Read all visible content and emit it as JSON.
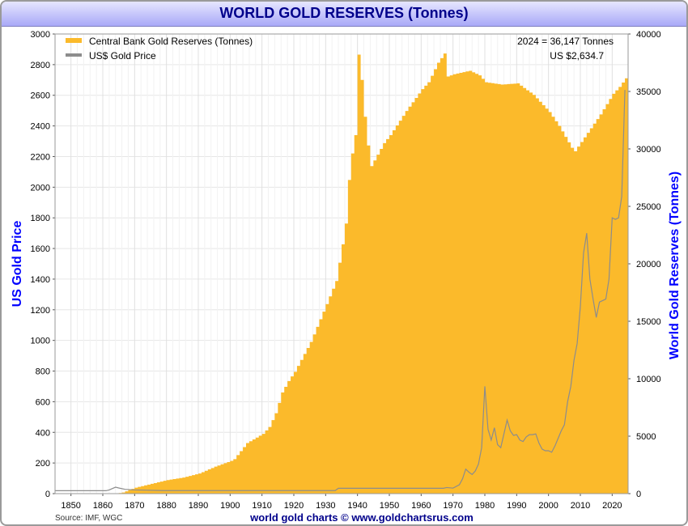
{
  "page": {
    "title": "WORLD GOLD RESERVES (Tonnes)",
    "source": "Source: IMF, WGC",
    "footer": "world gold charts © www.goldchartsrus.com"
  },
  "colors": {
    "reserves": "#fbba2b",
    "price": "#8c8c8c",
    "axis_title": "#0000ff",
    "title": "#00008b",
    "grid": "#e6e6e6"
  },
  "chart_data": {
    "type": "area",
    "title": "WORLD GOLD RESERVES (Tonnes)",
    "xlim": [
      1845,
      2025
    ],
    "x_ticks": [
      1850,
      1860,
      1870,
      1880,
      1890,
      1900,
      1910,
      1920,
      1930,
      1940,
      1950,
      1960,
      1970,
      1980,
      1990,
      2000,
      2010,
      2020
    ],
    "left_axis": {
      "label": "US Gold Price",
      "ylim": [
        0,
        3000
      ],
      "ticks": [
        0,
        200,
        400,
        600,
        800,
        1000,
        1200,
        1400,
        1600,
        1800,
        2000,
        2200,
        2400,
        2600,
        2800,
        3000
      ]
    },
    "right_axis": {
      "label": "World Gold Reserves (Tonnes)",
      "ylim": [
        0,
        40000
      ],
      "ticks": [
        0,
        5000,
        10000,
        15000,
        20000,
        25000,
        30000,
        35000,
        40000
      ]
    },
    "legend_position": "top-left",
    "annotations": [
      "2024 = 36,147 Tonnes",
      "US $2,634.7"
    ],
    "series": [
      {
        "name": "Central Bank Gold Reserves (Tonnes)",
        "axis": "right",
        "render": "area",
        "points": [
          [
            1845,
            0
          ],
          [
            1864,
            0
          ],
          [
            1866,
            100
          ],
          [
            1870,
            520
          ],
          [
            1875,
            850
          ],
          [
            1880,
            1180
          ],
          [
            1885,
            1400
          ],
          [
            1890,
            1750
          ],
          [
            1895,
            2350
          ],
          [
            1900,
            2850
          ],
          [
            1901,
            3000
          ],
          [
            1905,
            4400
          ],
          [
            1910,
            5200
          ],
          [
            1912,
            5800
          ],
          [
            1914,
            7000
          ],
          [
            1916,
            8800
          ],
          [
            1918,
            9800
          ],
          [
            1920,
            10600
          ],
          [
            1925,
            13200
          ],
          [
            1930,
            16500
          ],
          [
            1933,
            18500
          ],
          [
            1935,
            21700
          ],
          [
            1936,
            23500
          ],
          [
            1937,
            27300
          ],
          [
            1938,
            29600
          ],
          [
            1939,
            31200
          ],
          [
            1940,
            38200
          ],
          [
            1941,
            36000
          ],
          [
            1942,
            32800
          ],
          [
            1943,
            30300
          ],
          [
            1944,
            28500
          ],
          [
            1946,
            29500
          ],
          [
            1948,
            30500
          ],
          [
            1950,
            31200
          ],
          [
            1955,
            33300
          ],
          [
            1960,
            35200
          ],
          [
            1962,
            35800
          ],
          [
            1965,
            37500
          ],
          [
            1967,
            38300
          ],
          [
            1968,
            36300
          ],
          [
            1970,
            36500
          ],
          [
            1975,
            36800
          ],
          [
            1978,
            36400
          ],
          [
            1980,
            35800
          ],
          [
            1985,
            35600
          ],
          [
            1990,
            35700
          ],
          [
            1995,
            34700
          ],
          [
            2000,
            33200
          ],
          [
            2003,
            32000
          ],
          [
            2007,
            30100
          ],
          [
            2008,
            29800
          ],
          [
            2010,
            30600
          ],
          [
            2013,
            31800
          ],
          [
            2016,
            33000
          ],
          [
            2020,
            34800
          ],
          [
            2022,
            35400
          ],
          [
            2024,
            36147
          ]
        ]
      },
      {
        "name": "US$ Gold Price",
        "axis": "left",
        "render": "line",
        "points": [
          [
            1845,
            19
          ],
          [
            1861,
            19
          ],
          [
            1862,
            24
          ],
          [
            1864,
            42
          ],
          [
            1865,
            37
          ],
          [
            1867,
            28
          ],
          [
            1870,
            24
          ],
          [
            1879,
            20
          ],
          [
            1933,
            20
          ],
          [
            1934,
            35
          ],
          [
            1967,
            35
          ],
          [
            1968,
            40
          ],
          [
            1970,
            36
          ],
          [
            1972,
            58
          ],
          [
            1973,
            97
          ],
          [
            1974,
            160
          ],
          [
            1975,
            140
          ],
          [
            1976,
            125
          ],
          [
            1977,
            148
          ],
          [
            1978,
            193
          ],
          [
            1979,
            300
          ],
          [
            1980,
            700
          ],
          [
            1981,
            420
          ],
          [
            1982,
            350
          ],
          [
            1983,
            430
          ],
          [
            1984,
            320
          ],
          [
            1985,
            300
          ],
          [
            1986,
            390
          ],
          [
            1987,
            480
          ],
          [
            1988,
            410
          ],
          [
            1989,
            380
          ],
          [
            1990,
            385
          ],
          [
            1991,
            350
          ],
          [
            1992,
            340
          ],
          [
            1993,
            370
          ],
          [
            1994,
            385
          ],
          [
            1995,
            385
          ],
          [
            1996,
            390
          ],
          [
            1997,
            330
          ],
          [
            1998,
            290
          ],
          [
            1999,
            280
          ],
          [
            2000,
            280
          ],
          [
            2001,
            270
          ],
          [
            2002,
            310
          ],
          [
            2003,
            360
          ],
          [
            2004,
            410
          ],
          [
            2005,
            450
          ],
          [
            2006,
            600
          ],
          [
            2007,
            700
          ],
          [
            2008,
            870
          ],
          [
            2009,
            980
          ],
          [
            2010,
            1220
          ],
          [
            2011,
            1570
          ],
          [
            2012,
            1700
          ],
          [
            2013,
            1400
          ],
          [
            2014,
            1270
          ],
          [
            2015,
            1150
          ],
          [
            2016,
            1250
          ],
          [
            2017,
            1260
          ],
          [
            2018,
            1270
          ],
          [
            2019,
            1400
          ],
          [
            2020,
            1800
          ],
          [
            2021,
            1790
          ],
          [
            2022,
            1800
          ],
          [
            2023,
            1940
          ],
          [
            2024,
            2634.7
          ]
        ]
      }
    ]
  }
}
